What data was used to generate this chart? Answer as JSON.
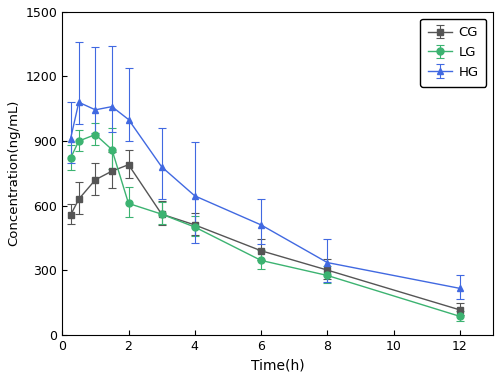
{
  "title": "",
  "xlabel": "Time(h)",
  "ylabel": "Concentration(ng/mL)",
  "xlim": [
    0,
    13
  ],
  "ylim": [
    0,
    1500
  ],
  "yticks": [
    0,
    300,
    600,
    900,
    1200,
    1500
  ],
  "xticks": [
    0,
    2,
    4,
    6,
    8,
    10,
    12
  ],
  "CG": {
    "label": "CG",
    "color": "#555555",
    "marker": "s",
    "x": [
      0.25,
      0.5,
      1.0,
      1.5,
      2.0,
      3.0,
      4.0,
      6.0,
      8.0,
      12.0
    ],
    "y": [
      555,
      630,
      720,
      760,
      790,
      560,
      510,
      390,
      300,
      115
    ],
    "yerr_low": [
      40,
      70,
      70,
      80,
      60,
      50,
      45,
      45,
      40,
      25
    ],
    "yerr_high": [
      50,
      80,
      80,
      90,
      70,
      60,
      55,
      55,
      50,
      30
    ]
  },
  "LG": {
    "label": "LG",
    "color": "#3CB371",
    "marker": "o",
    "x": [
      0.25,
      0.5,
      1.0,
      1.5,
      2.0,
      3.0,
      4.0,
      6.0,
      8.0,
      12.0
    ],
    "y": [
      820,
      900,
      930,
      860,
      610,
      560,
      500,
      345,
      275,
      85
    ],
    "yerr_low": [
      55,
      45,
      50,
      90,
      65,
      45,
      40,
      40,
      35,
      20
    ],
    "yerr_high": [
      60,
      50,
      55,
      100,
      75,
      55,
      50,
      50,
      45,
      25
    ]
  },
  "HG": {
    "label": "HG",
    "color": "#4169E1",
    "marker": "^",
    "x": [
      0.25,
      0.5,
      1.0,
      1.5,
      2.0,
      3.0,
      4.0,
      6.0,
      8.0,
      12.0
    ],
    "y": [
      910,
      1080,
      1045,
      1060,
      1000,
      780,
      645,
      510,
      335,
      215
    ],
    "yerr_low": [
      110,
      100,
      110,
      120,
      100,
      150,
      220,
      90,
      90,
      50
    ],
    "yerr_high": [
      170,
      280,
      290,
      280,
      240,
      180,
      250,
      120,
      110,
      60
    ]
  },
  "legend_loc": "upper right",
  "linewidth": 1.0,
  "markersize": 5,
  "capsize": 3,
  "elinewidth": 0.8
}
